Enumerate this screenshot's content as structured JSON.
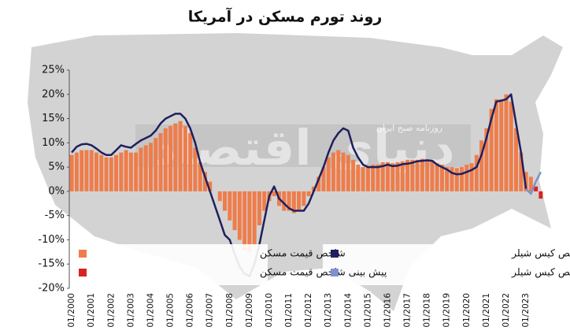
{
  "watermark": "دنیای اقتصاد",
  "watermark_sub": "روزنامه صبح ایران",
  "chart_data": {
    "type": "bar-line",
    "title": "روند تورم مسکن در آمریکا",
    "categories": [
      "01/2000",
      null,
      null,
      null,
      "01/2001",
      null,
      null,
      null,
      "01/2002",
      null,
      null,
      null,
      "01/2003",
      null,
      null,
      null,
      "01/2004",
      null,
      null,
      null,
      "01/2005",
      null,
      null,
      null,
      "01/2006",
      null,
      null,
      null,
      "01/2007",
      null,
      null,
      null,
      "01/2008",
      null,
      null,
      null,
      "01/2009",
      null,
      null,
      null,
      "01/2010",
      null,
      null,
      null,
      "01/2011",
      null,
      null,
      null,
      "01/2012",
      null,
      null,
      null,
      "01/2013",
      null,
      null,
      null,
      "01/2014",
      null,
      null,
      null,
      "01/2015",
      null,
      null,
      null,
      "01/2016",
      null,
      null,
      null,
      "01/2017",
      null,
      null,
      null,
      "01/2018",
      null,
      null,
      null,
      "01/2019",
      null,
      null,
      null,
      "01/2020",
      null,
      null,
      null,
      "01/2021",
      null,
      null,
      null,
      "01/2022",
      null,
      null,
      null,
      "01/2023",
      null,
      null,
      null
    ],
    "ylim": [
      -20,
      25
    ],
    "yticks": [
      {
        "value": -20,
        "label": "-20%"
      },
      {
        "value": -15,
        "label": "-15%"
      },
      {
        "value": -10,
        "label": "-10%"
      },
      {
        "value": -5,
        "label": "-5%"
      },
      {
        "value": 0,
        "label": "0%"
      },
      {
        "value": 5,
        "label": "5%"
      },
      {
        "value": 10,
        "label": "10%"
      },
      {
        "value": 15,
        "label": "15%"
      },
      {
        "value": 20,
        "label": "20%"
      },
      {
        "value": 25,
        "label": "25%"
      }
    ],
    "series": [
      {
        "name": "شاخص قیمت مسکن",
        "kind": "bar",
        "color": "#ee7d4b",
        "values": [
          7.5,
          8,
          8.5,
          8.5,
          8.5,
          8,
          7.5,
          7,
          7,
          7.5,
          8,
          8.5,
          8,
          8,
          9,
          9.5,
          10,
          11,
          12,
          13,
          13.5,
          14,
          14.5,
          13.5,
          12,
          9,
          6,
          4,
          2,
          0,
          -2,
          -4,
          -6,
          -8,
          -10,
          -12,
          -12.5,
          -11,
          -7,
          -4,
          -2,
          -1,
          -3,
          -4,
          -4,
          -4.5,
          -4,
          -3,
          -1,
          1,
          3,
          5,
          7,
          8,
          8.5,
          8,
          7.5,
          6.5,
          5.5,
          5,
          5.2,
          5.5,
          5.5,
          6,
          6,
          5.8,
          6,
          6.2,
          6.5,
          6.5,
          6.5,
          6.7,
          6.6,
          6.4,
          5.8,
          5.5,
          5,
          5,
          4.8,
          5,
          5.5,
          5.8,
          7.5,
          10.5,
          13,
          17,
          19,
          19,
          20,
          18.5,
          13,
          8,
          4,
          3,
          null,
          null
        ]
      },
      {
        "name": "پیش بینی شاخص قیمت مسکن",
        "kind": "bar",
        "color": "#d9231e",
        "values": [
          null,
          null,
          null,
          null,
          null,
          null,
          null,
          null,
          null,
          null,
          null,
          null,
          null,
          null,
          null,
          null,
          null,
          null,
          null,
          null,
          null,
          null,
          null,
          null,
          null,
          null,
          null,
          null,
          null,
          null,
          null,
          null,
          null,
          null,
          null,
          null,
          null,
          null,
          null,
          null,
          null,
          null,
          null,
          null,
          null,
          null,
          null,
          null,
          null,
          null,
          null,
          null,
          null,
          null,
          null,
          null,
          null,
          null,
          null,
          null,
          null,
          null,
          null,
          null,
          null,
          null,
          null,
          null,
          null,
          null,
          null,
          null,
          null,
          null,
          null,
          null,
          null,
          null,
          null,
          null,
          null,
          null,
          null,
          null,
          null,
          null,
          null,
          null,
          null,
          null,
          null,
          null,
          null,
          null,
          1,
          -1.5
        ]
      },
      {
        "name": "شاخص کیس شیلر",
        "kind": "line",
        "color": "#1f1f5e",
        "values": [
          8,
          9.2,
          9.7,
          9.8,
          9.5,
          8.8,
          8,
          7.5,
          7.5,
          8.5,
          9.5,
          9.2,
          9,
          9.8,
          10.5,
          11,
          11.5,
          12.5,
          14,
          15,
          15.5,
          16,
          16,
          15,
          13,
          10,
          6,
          3,
          0,
          -3,
          -6,
          -9,
          -10,
          -13,
          -15.5,
          -17,
          -17.5,
          -15,
          -11,
          -6,
          -1,
          1,
          -1.5,
          -2.5,
          -3.5,
          -4,
          -4,
          -4,
          -2.5,
          0,
          2.5,
          5,
          8,
          10.5,
          12,
          13,
          12.5,
          9,
          7,
          5.5,
          5,
          5,
          5,
          5.2,
          5.5,
          5.2,
          5.3,
          5.6,
          5.7,
          5.9,
          6.2,
          6.3,
          6.4,
          6.3,
          5.5,
          5,
          4.5,
          3.8,
          3.5,
          3.6,
          4,
          4.4,
          5,
          7.5,
          11,
          15,
          18.5,
          18.7,
          19,
          20,
          14,
          8,
          0.5,
          null,
          null,
          null
        ]
      },
      {
        "name": "پیش بینی شاخص کیس شیلر",
        "kind": "line",
        "color": "#7f8fd0",
        "values": [
          null,
          null,
          null,
          null,
          null,
          null,
          null,
          null,
          null,
          null,
          null,
          null,
          null,
          null,
          null,
          null,
          null,
          null,
          null,
          null,
          null,
          null,
          null,
          null,
          null,
          null,
          null,
          null,
          null,
          null,
          null,
          null,
          null,
          null,
          null,
          null,
          null,
          null,
          null,
          null,
          null,
          null,
          null,
          null,
          null,
          null,
          null,
          null,
          null,
          null,
          null,
          null,
          null,
          null,
          null,
          null,
          null,
          null,
          null,
          null,
          null,
          null,
          null,
          null,
          null,
          null,
          null,
          null,
          null,
          null,
          null,
          null,
          null,
          null,
          null,
          null,
          null,
          null,
          null,
          null,
          null,
          null,
          null,
          null,
          null,
          null,
          null,
          null,
          null,
          null,
          null,
          null,
          0.5,
          -0.5,
          2,
          4
        ]
      }
    ]
  }
}
